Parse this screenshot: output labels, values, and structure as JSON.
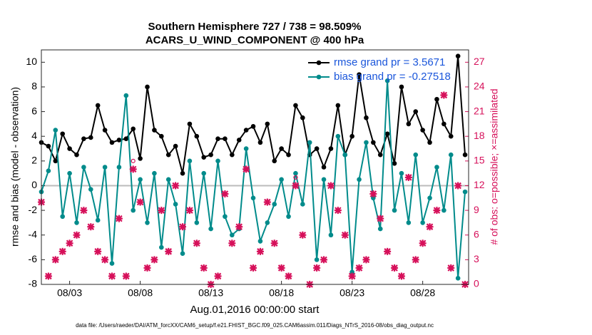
{
  "chart_data": {
    "type": "line",
    "title": "Southern Hemisphere 727 / 738 = 98.509%",
    "subtitle": "ACARS_U_WIND_COMPONENT @ 400 hPa",
    "xlabel": "Aug.01,2016 00:00:00 start",
    "ylabel": "rmse and bias (model - observation)",
    "y2label": "# of obs: o=possible; ×=assimilated",
    "footnote": "data file: /Users/raeder/DAI/ATM_forcXX/CAM6_setup/f.e21.FHIST_BGC.f09_025.CAM6assim.011/Diags_NTrS_2016-08/obs_diag_output.nc",
    "x": [
      0,
      0.5,
      1,
      1.5,
      2,
      2.5,
      3,
      3.5,
      4,
      4.5,
      5,
      5.5,
      6,
      6.5,
      7,
      7.5,
      8,
      8.5,
      9,
      9.5,
      10,
      10.5,
      11,
      11.5,
      12,
      12.5,
      13,
      13.5,
      14,
      14.5,
      15,
      15.5,
      16,
      16.5,
      17,
      17.5,
      18,
      18.5,
      19,
      19.5,
      20,
      20.5,
      21,
      21.5,
      22,
      22.5,
      23,
      23.5,
      24,
      24.5,
      25,
      25.5,
      26,
      26.5,
      27,
      27.5,
      28,
      28.5,
      29,
      29.5,
      30
    ],
    "series": [
      {
        "name": "rmse grand pr = 3.5671",
        "color": "#000000",
        "marker": "dot",
        "values": [
          3.5,
          3.2,
          2.0,
          4.2,
          3.0,
          2.5,
          3.8,
          3.9,
          6.5,
          4.5,
          3.5,
          3.7,
          3.8,
          4.6,
          2.2,
          8.0,
          4.5,
          4.0,
          2.5,
          3.2,
          1.0,
          5.0,
          4.0,
          2.3,
          2.5,
          3.8,
          3.8,
          2.5,
          3.7,
          4.5,
          4.8,
          3.5,
          5.0,
          2.0,
          3.0,
          2.5,
          6.5,
          5.5,
          2.5,
          3.0,
          1.5,
          3.0,
          6.5,
          2.5,
          4.0,
          9.0,
          5.5,
          3.5,
          2.5,
          4.2,
          1.8,
          8.0,
          5.0,
          6.0,
          4.5,
          3.5,
          7.0,
          5.0,
          4.0,
          10.5,
          2.5
        ]
      },
      {
        "name": "bias grand pr = -0.27518",
        "color": "#008b8b",
        "marker": "dot",
        "values": [
          -0.5,
          1.2,
          4.5,
          -2.5,
          1.0,
          -3.0,
          1.5,
          -0.3,
          -2.8,
          1.5,
          -6.3,
          1.5,
          7.3,
          -2.0,
          0.5,
          -3.0,
          1.0,
          -5.0,
          0.5,
          -1.5,
          -5.5,
          2.0,
          -3.0,
          1.0,
          -3.5,
          2.0,
          -2.5,
          -4.0,
          -3.5,
          3.0,
          -1.0,
          -4.5,
          -3.0,
          -1.5,
          0.5,
          -2.5,
          1.0,
          -1.5,
          3.5,
          -6.0,
          0.5,
          -4.0,
          4.0,
          2.5,
          -7.0,
          0.5,
          3.5,
          -1.0,
          -3.5,
          8.5,
          -2.0,
          1.0,
          -3.0,
          2.5,
          -3.0,
          -1.0,
          1.5,
          -2.0,
          2.5,
          -7.5,
          -0.5
        ]
      },
      {
        "color": "#d6105a",
        "marker": "o",
        "axis": "y2",
        "values": [
          10,
          1,
          3,
          4,
          5,
          6,
          9,
          7,
          4,
          3,
          1,
          8,
          1,
          15,
          10,
          2,
          3,
          9,
          4,
          12,
          7,
          9,
          5,
          2,
          0,
          1,
          11,
          5,
          7,
          14,
          2,
          4,
          10,
          5,
          2,
          1,
          13,
          6,
          0,
          2,
          3,
          12,
          9,
          6,
          1,
          2,
          3,
          11,
          8,
          4,
          2,
          1,
          13,
          3,
          5,
          7,
          9,
          23,
          2,
          12,
          0
        ]
      },
      {
        "color": "#d6105a",
        "marker": "x",
        "axis": "y2",
        "values": [
          10,
          1,
          3,
          4,
          5,
          6,
          9,
          7,
          4,
          3,
          1,
          8,
          1,
          14,
          10,
          2,
          3,
          9,
          4,
          12,
          7,
          9,
          5,
          2,
          0,
          1,
          11,
          5,
          7,
          14,
          2,
          4,
          10,
          5,
          2,
          1,
          12,
          6,
          0,
          2,
          3,
          12,
          9,
          6,
          1,
          2,
          3,
          11,
          8,
          4,
          2,
          1,
          13,
          3,
          5,
          7,
          9,
          23,
          2,
          12,
          0
        ]
      }
    ],
    "xlim": [
      0,
      30.25
    ],
    "xticks": [
      {
        "value": 2,
        "label": "08/03"
      },
      {
        "value": 7,
        "label": "08/08"
      },
      {
        "value": 12,
        "label": "08/13"
      },
      {
        "value": 17,
        "label": "08/18"
      },
      {
        "value": 22,
        "label": "08/23"
      },
      {
        "value": 27,
        "label": "08/28"
      }
    ],
    "ylim": [
      -8,
      11
    ],
    "yticks": [
      -8,
      -6,
      -4,
      -2,
      0,
      2,
      4,
      6,
      8,
      10
    ],
    "y2lim": [
      0,
      28.5
    ],
    "y2ticks": [
      0,
      3,
      6,
      9,
      12,
      15,
      18,
      21,
      24,
      27
    ],
    "zero_line": true,
    "grid": false,
    "legend": "upper right",
    "legend_text_color": "#1a56db"
  }
}
